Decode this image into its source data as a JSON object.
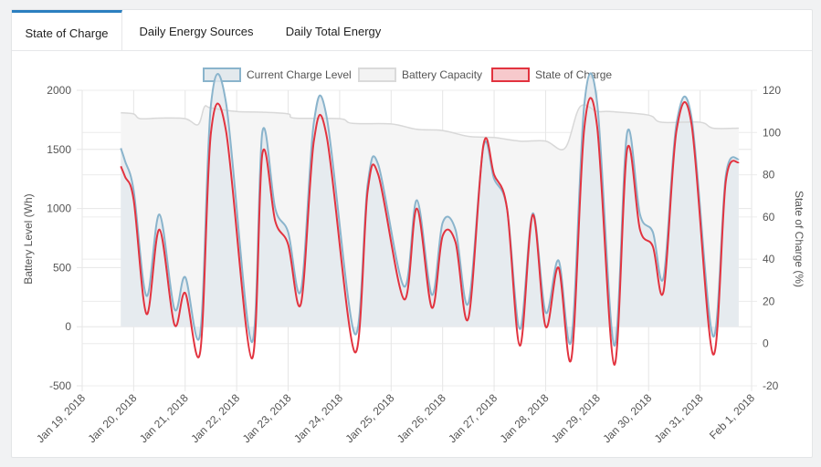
{
  "tabs": [
    {
      "label": "State of Charge",
      "active": true
    },
    {
      "label": "Daily Energy Sources",
      "active": false
    },
    {
      "label": "Daily Total Energy",
      "active": false
    }
  ],
  "colors": {
    "tab_accent": "#2c7fc0",
    "charge_line": "#8ab4cc",
    "charge_fill": "#e3e9ed",
    "capacity_line": "#d8d8d8",
    "capacity_fill": "#f5f5f5",
    "soc_line": "#e2333f",
    "soc_fill": "#f7c9cc"
  },
  "chart_data": {
    "type": "line",
    "title": "",
    "legend_position": "top",
    "grid": true,
    "y_left": {
      "label": "Battery Level (Wh)",
      "range": [
        -500,
        2000
      ],
      "ticks": [
        -500,
        0,
        500,
        1000,
        1500,
        2000
      ]
    },
    "y_right": {
      "label": "State of Charge (%)",
      "range": [
        -20,
        120
      ],
      "ticks": [
        -20,
        0,
        20,
        40,
        60,
        80,
        100,
        120
      ]
    },
    "x": {
      "range": [
        "2018-01-19",
        "2018-02-01"
      ],
      "tick_labels": [
        "Jan 19, 2018",
        "Jan 20, 2018",
        "Jan 21, 2018",
        "Jan 22, 2018",
        "Jan 23, 2018",
        "Jan 24, 2018",
        "Jan 25, 2018",
        "Jan 26, 2018",
        "Jan 27, 2018",
        "Jan 28, 2018",
        "Jan 29, 2018",
        "Jan 30, 2018",
        "Jan 31, 2018",
        "Feb 1, 2018"
      ]
    },
    "series": [
      {
        "name": "Current Charge Level",
        "axis": "left",
        "points": [
          [
            "2018-01-19 18:00",
            1510
          ],
          [
            "2018-01-19 20:00",
            1400
          ],
          [
            "2018-01-20 00:00",
            1150
          ],
          [
            "2018-01-20 06:00",
            260
          ],
          [
            "2018-01-20 12:00",
            950
          ],
          [
            "2018-01-20 19:00",
            150
          ],
          [
            "2018-01-21 00:00",
            420
          ],
          [
            "2018-01-21 07:00",
            -60
          ],
          [
            "2018-01-21 12:00",
            1880
          ],
          [
            "2018-01-21 19:00",
            1900
          ],
          [
            "2018-01-22 07:00",
            -130
          ],
          [
            "2018-01-22 12:00",
            1650
          ],
          [
            "2018-01-22 18:00",
            1000
          ],
          [
            "2018-01-23 00:00",
            800
          ],
          [
            "2018-01-23 06:00",
            310
          ],
          [
            "2018-01-23 12:00",
            1730
          ],
          [
            "2018-01-23 18:00",
            1770
          ],
          [
            "2018-01-24 07:00",
            -60
          ],
          [
            "2018-01-24 13:00",
            1200
          ],
          [
            "2018-01-24 18:00",
            1370
          ],
          [
            "2018-01-25 06:00",
            340
          ],
          [
            "2018-01-25 12:00",
            1070
          ],
          [
            "2018-01-25 19:00",
            270
          ],
          [
            "2018-01-26 00:00",
            880
          ],
          [
            "2018-01-26 06:00",
            820
          ],
          [
            "2018-01-26 12:00",
            200
          ],
          [
            "2018-01-26 19:00",
            1520
          ],
          [
            "2018-01-27 00:00",
            1250
          ],
          [
            "2018-01-27 06:00",
            1000
          ],
          [
            "2018-01-27 12:00",
            -20
          ],
          [
            "2018-01-27 18:00",
            960
          ],
          [
            "2018-01-28 00:00",
            120
          ],
          [
            "2018-01-28 06:00",
            560
          ],
          [
            "2018-01-28 12:00",
            -110
          ],
          [
            "2018-01-28 18:00",
            1880
          ],
          [
            "2018-01-29 00:00",
            1900
          ],
          [
            "2018-01-29 08:00",
            -160
          ],
          [
            "2018-01-29 14:00",
            1640
          ],
          [
            "2018-01-29 20:00",
            950
          ],
          [
            "2018-01-30 02:00",
            800
          ],
          [
            "2018-01-30 07:00",
            420
          ],
          [
            "2018-01-30 13:00",
            1720
          ],
          [
            "2018-01-30 20:00",
            1770
          ],
          [
            "2018-01-31 06:00",
            -80
          ],
          [
            "2018-01-31 12:00",
            1280
          ],
          [
            "2018-01-31 18:00",
            1420
          ]
        ]
      },
      {
        "name": "Battery Capacity",
        "axis": "left",
        "points": [
          [
            "2018-01-19 18:00",
            1810
          ],
          [
            "2018-01-20 00:00",
            1800
          ],
          [
            "2018-01-20 03:00",
            1760
          ],
          [
            "2018-01-20 12:00",
            1765
          ],
          [
            "2018-01-21 00:00",
            1760
          ],
          [
            "2018-01-21 06:00",
            1710
          ],
          [
            "2018-01-21 09:00",
            1860
          ],
          [
            "2018-01-21 12:00",
            1850
          ],
          [
            "2018-01-22 00:00",
            1820
          ],
          [
            "2018-01-22 12:00",
            1815
          ],
          [
            "2018-01-23 00:00",
            1800
          ],
          [
            "2018-01-23 03:00",
            1765
          ],
          [
            "2018-01-24 00:00",
            1760
          ],
          [
            "2018-01-24 06:00",
            1720
          ],
          [
            "2018-01-25 00:00",
            1715
          ],
          [
            "2018-01-25 12:00",
            1670
          ],
          [
            "2018-01-26 00:00",
            1660
          ],
          [
            "2018-01-26 12:00",
            1610
          ],
          [
            "2018-01-27 00:00",
            1600
          ],
          [
            "2018-01-27 12:00",
            1570
          ],
          [
            "2018-01-28 00:00",
            1570
          ],
          [
            "2018-01-28 09:00",
            1510
          ],
          [
            "2018-01-28 16:00",
            1860
          ],
          [
            "2018-01-29 00:00",
            1820
          ],
          [
            "2018-01-29 06:00",
            1820
          ],
          [
            "2018-01-30 00:00",
            1790
          ],
          [
            "2018-01-30 06:00",
            1730
          ],
          [
            "2018-01-31 00:00",
            1730
          ],
          [
            "2018-01-31 06:00",
            1680
          ],
          [
            "2018-01-31 18:00",
            1680
          ]
        ]
      },
      {
        "name": "State of Charge",
        "axis": "right",
        "points": [
          [
            "2018-01-19 18:00",
            84
          ],
          [
            "2018-01-19 20:00",
            79
          ],
          [
            "2018-01-20 00:00",
            68
          ],
          [
            "2018-01-20 06:00",
            14
          ],
          [
            "2018-01-20 12:00",
            54
          ],
          [
            "2018-01-20 19:00",
            9
          ],
          [
            "2018-01-21 00:00",
            24
          ],
          [
            "2018-01-21 07:00",
            -4
          ],
          [
            "2018-01-21 12:00",
            100
          ],
          [
            "2018-01-21 19:00",
            101
          ],
          [
            "2018-01-22 07:00",
            -7
          ],
          [
            "2018-01-22 12:00",
            90
          ],
          [
            "2018-01-22 18:00",
            58
          ],
          [
            "2018-01-23 00:00",
            47
          ],
          [
            "2018-01-23 06:00",
            19
          ],
          [
            "2018-01-23 12:00",
            96
          ],
          [
            "2018-01-23 18:00",
            98
          ],
          [
            "2018-01-24 07:00",
            -4
          ],
          [
            "2018-01-24 13:00",
            72
          ],
          [
            "2018-01-24 18:00",
            80
          ],
          [
            "2018-01-25 06:00",
            21
          ],
          [
            "2018-01-25 12:00",
            64
          ],
          [
            "2018-01-25 19:00",
            17
          ],
          [
            "2018-01-26 00:00",
            51
          ],
          [
            "2018-01-26 06:00",
            48
          ],
          [
            "2018-01-26 12:00",
            12
          ],
          [
            "2018-01-26 19:00",
            94
          ],
          [
            "2018-01-27 00:00",
            80
          ],
          [
            "2018-01-27 06:00",
            64
          ],
          [
            "2018-01-27 12:00",
            -1
          ],
          [
            "2018-01-27 18:00",
            61
          ],
          [
            "2018-01-28 00:00",
            8
          ],
          [
            "2018-01-28 06:00",
            36
          ],
          [
            "2018-01-28 12:00",
            -7
          ],
          [
            "2018-01-28 18:00",
            102
          ],
          [
            "2018-01-29 00:00",
            103
          ],
          [
            "2018-01-29 08:00",
            -10
          ],
          [
            "2018-01-29 14:00",
            92
          ],
          [
            "2018-01-29 20:00",
            54
          ],
          [
            "2018-01-30 02:00",
            46
          ],
          [
            "2018-01-30 07:00",
            25
          ],
          [
            "2018-01-30 13:00",
            101
          ],
          [
            "2018-01-30 20:00",
            104
          ],
          [
            "2018-01-31 06:00",
            -5
          ],
          [
            "2018-01-31 12:00",
            77
          ],
          [
            "2018-01-31 18:00",
            86
          ]
        ]
      }
    ]
  }
}
